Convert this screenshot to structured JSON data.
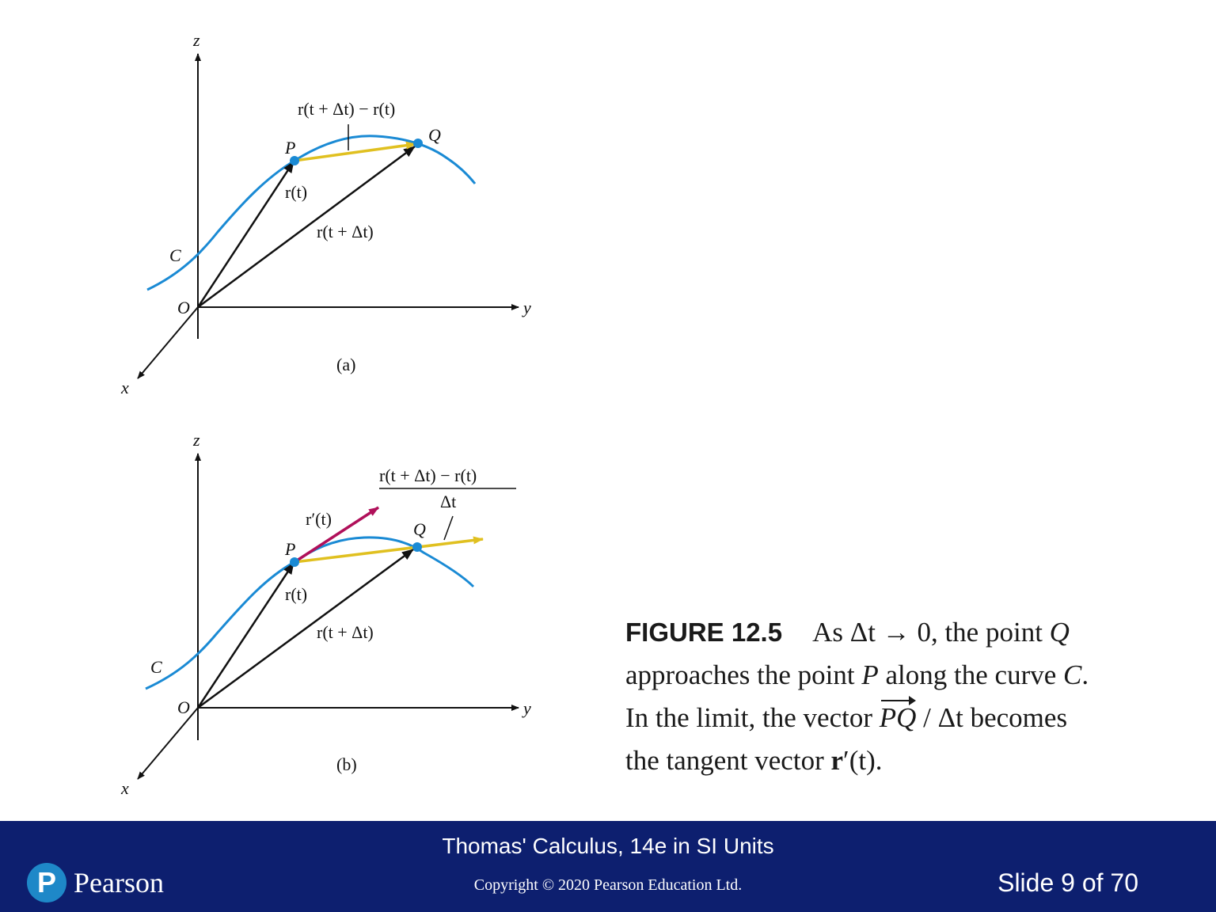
{
  "panel_a": {
    "axis_z": "z",
    "axis_y": "y",
    "axis_x": "x",
    "origin": "O",
    "curve": "C",
    "point_p": "P",
    "point_q": "Q",
    "vec_rt": "r(t)",
    "vec_rtdt": "r(t + Δt)",
    "secant": "r(t + Δt) − r(t)",
    "tag": "(a)"
  },
  "panel_b": {
    "axis_z": "z",
    "axis_y": "y",
    "axis_x": "x",
    "origin": "O",
    "curve": "C",
    "point_p": "P",
    "point_q": "Q",
    "vec_rt": "r(t)",
    "vec_rtdt": "r(t + Δt)",
    "vec_rprime": "r′(t)",
    "quotient_numerator": "r(t + Δt) − r(t)",
    "quotient_denominator": "Δt",
    "tag": "(b)"
  },
  "caption": {
    "figure_number": "FIGURE 12.5",
    "text_1": "As Δt → 0, the point",
    "q": "Q",
    "text_2": "approaches the point",
    "p": "P",
    "text_3": "along the curve",
    "c": "C",
    "text_4": ".",
    "text_5": "In the limit, the vector",
    "pq": "PQ",
    "text_6": "/ Δt becomes",
    "text_7": "the tangent vector",
    "rprime_bold": "r",
    "rprime_tail": "′(t).",
    "t_symbol": "t"
  },
  "footer": {
    "book_title": "Thomas' Calculus, 14e in SI Units",
    "copyright": "Copyright © 2020 Pearson Education Ltd.",
    "slide_counter": "Slide 9 of 70",
    "logo_mark": "P",
    "logo_word": "Pearson"
  },
  "colors": {
    "curve": "#1a8ad4",
    "secant": "#e0c020",
    "tangent": "#b0105a",
    "vector": "#111111",
    "footer_bg": "#0d1f6f",
    "logo": "#1e88c8"
  }
}
